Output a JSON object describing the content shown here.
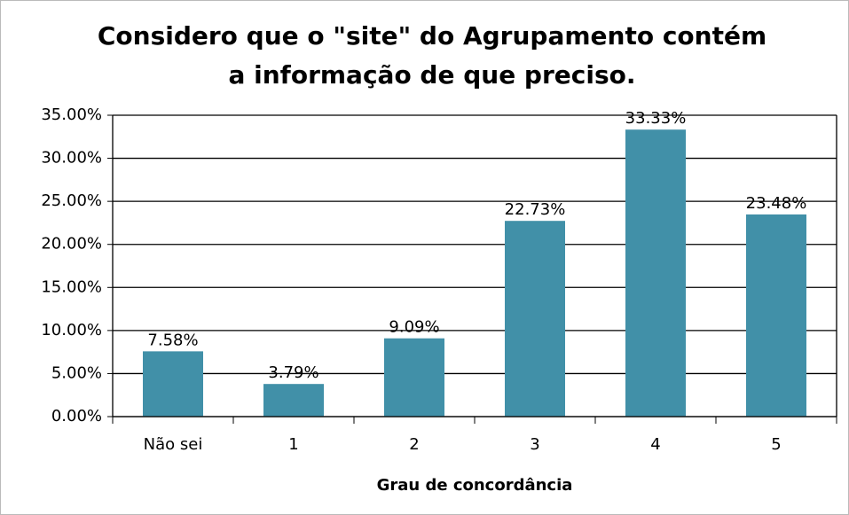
{
  "chart_data": {
    "type": "bar",
    "title": [
      "Considero que o \"site\" do Agrupamento contém",
      "a informação de que preciso."
    ],
    "x_label": "Grau de concordância",
    "categories": [
      "Não sei",
      "1",
      "2",
      "3",
      "4",
      "5"
    ],
    "values": [
      7.58,
      3.79,
      9.09,
      22.73,
      33.33,
      23.48
    ],
    "value_labels": [
      "7.58%",
      "3.79%",
      "9.09%",
      "22.73%",
      "33.33%",
      "23.48%"
    ],
    "color": "#4190a8",
    "ylim": [
      0,
      35
    ],
    "yticks": [
      {
        "value": 0,
        "label": "0.00%"
      },
      {
        "value": 5,
        "label": "5.00%"
      },
      {
        "value": 10,
        "label": "10.00%"
      },
      {
        "value": 15,
        "label": "15.00%"
      },
      {
        "value": 20,
        "label": "20.00%"
      },
      {
        "value": 25,
        "label": "25.00%"
      },
      {
        "value": 30,
        "label": "30.00%"
      },
      {
        "value": 35,
        "label": "35.00%"
      }
    ],
    "grid": true
  }
}
